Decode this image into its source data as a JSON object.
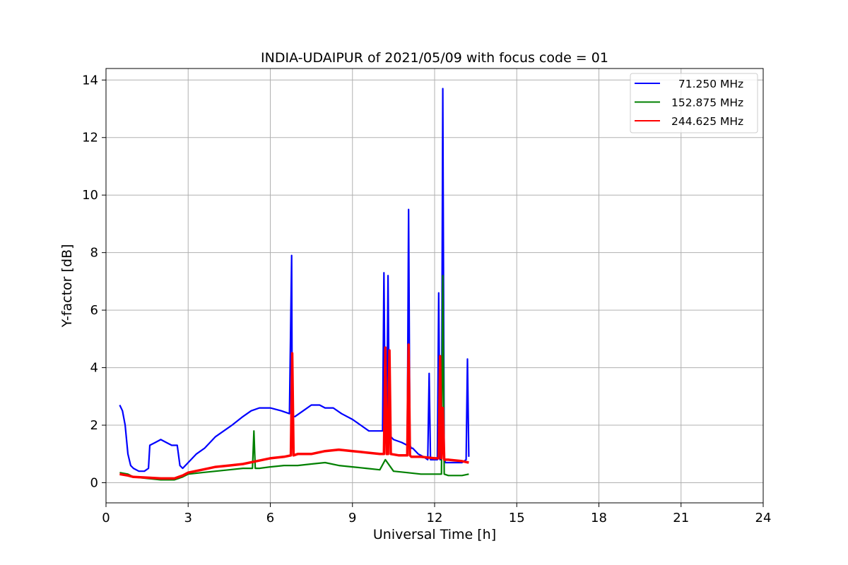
{
  "chart_data": {
    "type": "line",
    "title": "INDIA-UDAIPUR of 2021/05/09 with focus code = 01",
    "xlabel": "Universal Time [h]",
    "ylabel": "Y-factor [dB]",
    "xlim": [
      0,
      24
    ],
    "ylim": [
      -0.7,
      14.4
    ],
    "xticks": [
      "0",
      "3",
      "6",
      "9",
      "12",
      "15",
      "18",
      "21",
      "24"
    ],
    "yticks": [
      "0",
      "2",
      "4",
      "6",
      "8",
      "10",
      "12",
      "14"
    ],
    "grid": true,
    "legend_position": "top-right",
    "series": [
      {
        "name": "  71.250 MHz",
        "color": "#0000ff",
        "x": [
          0.5,
          0.6,
          0.7,
          0.8,
          0.9,
          1.0,
          1.2,
          1.4,
          1.55,
          1.6,
          1.8,
          2.0,
          2.2,
          2.4,
          2.6,
          2.7,
          2.8,
          3.0,
          3.3,
          3.6,
          4.0,
          4.3,
          4.6,
          5.0,
          5.3,
          5.6,
          6.0,
          6.4,
          6.7,
          6.78,
          6.8,
          6.82,
          6.9,
          7.2,
          7.5,
          7.8,
          8.0,
          8.3,
          8.6,
          9.0,
          9.3,
          9.6,
          9.9,
          10.1,
          10.15,
          10.2,
          10.25,
          10.3,
          10.35,
          10.4,
          10.5,
          10.8,
          11.0,
          11.05,
          11.1,
          11.15,
          11.2,
          11.4,
          11.6,
          11.75,
          11.8,
          11.85,
          12.0,
          12.1,
          12.15,
          12.2,
          12.25,
          12.3,
          12.35,
          12.4,
          12.6,
          12.8,
          13.0,
          13.15,
          13.2,
          13.25
        ],
        "y": [
          2.7,
          2.5,
          2.0,
          1.0,
          0.6,
          0.5,
          0.4,
          0.4,
          0.5,
          1.3,
          1.4,
          1.5,
          1.4,
          1.3,
          1.3,
          0.6,
          0.5,
          0.7,
          1.0,
          1.2,
          1.6,
          1.8,
          2.0,
          2.3,
          2.5,
          2.6,
          2.6,
          2.5,
          2.4,
          7.9,
          2.4,
          2.3,
          2.3,
          2.5,
          2.7,
          2.7,
          2.6,
          2.6,
          2.4,
          2.2,
          2.0,
          1.8,
          1.8,
          1.8,
          7.3,
          1.7,
          1.7,
          7.2,
          1.6,
          1.6,
          1.5,
          1.4,
          1.3,
          9.5,
          1.3,
          1.2,
          1.2,
          1.0,
          0.9,
          0.8,
          3.8,
          0.8,
          0.8,
          0.8,
          6.6,
          0.8,
          0.8,
          13.7,
          0.8,
          0.7,
          0.7,
          0.7,
          0.7,
          0.8,
          4.3,
          0.9
        ]
      },
      {
        "name": "152.875 MHz",
        "color": "#008000",
        "x": [
          0.5,
          0.8,
          1.0,
          1.5,
          2.0,
          2.5,
          2.8,
          3.0,
          3.5,
          4.0,
          4.5,
          5.0,
          5.35,
          5.4,
          5.45,
          5.6,
          6.0,
          6.5,
          7.0,
          7.5,
          8.0,
          8.5,
          9.0,
          9.5,
          10.0,
          10.2,
          10.5,
          11.0,
          11.5,
          12.0,
          12.25,
          12.3,
          12.35,
          12.5,
          13.0,
          13.25
        ],
        "y": [
          0.35,
          0.3,
          0.2,
          0.15,
          0.1,
          0.1,
          0.2,
          0.3,
          0.35,
          0.4,
          0.45,
          0.5,
          0.5,
          1.8,
          0.5,
          0.5,
          0.55,
          0.6,
          0.6,
          0.65,
          0.7,
          0.6,
          0.55,
          0.5,
          0.45,
          0.8,
          0.4,
          0.35,
          0.3,
          0.3,
          0.3,
          7.2,
          0.3,
          0.25,
          0.25,
          0.3
        ]
      },
      {
        "name": "244.625 MHz",
        "color": "#ff0000",
        "x": [
          0.5,
          0.8,
          1.0,
          1.5,
          2.0,
          2.5,
          2.8,
          3.0,
          3.5,
          4.0,
          4.5,
          5.0,
          5.5,
          6.0,
          6.5,
          6.75,
          6.8,
          6.85,
          7.0,
          7.5,
          8.0,
          8.5,
          9.0,
          9.5,
          10.0,
          10.15,
          10.2,
          10.25,
          10.3,
          10.35,
          10.4,
          10.7,
          11.0,
          11.05,
          11.1,
          11.15,
          11.5,
          12.0,
          12.15,
          12.2,
          12.25,
          12.3,
          12.35,
          12.5,
          13.0,
          13.25
        ],
        "y": [
          0.3,
          0.25,
          0.2,
          0.18,
          0.15,
          0.15,
          0.25,
          0.35,
          0.45,
          0.55,
          0.6,
          0.65,
          0.75,
          0.85,
          0.9,
          0.95,
          4.5,
          0.95,
          1.0,
          1.0,
          1.1,
          1.15,
          1.1,
          1.05,
          1.0,
          1.0,
          4.7,
          1.0,
          1.0,
          4.6,
          1.0,
          0.95,
          0.95,
          4.8,
          0.95,
          0.9,
          0.9,
          0.85,
          0.85,
          4.4,
          0.85,
          2.6,
          0.8,
          0.8,
          0.75,
          0.7
        ]
      }
    ]
  }
}
